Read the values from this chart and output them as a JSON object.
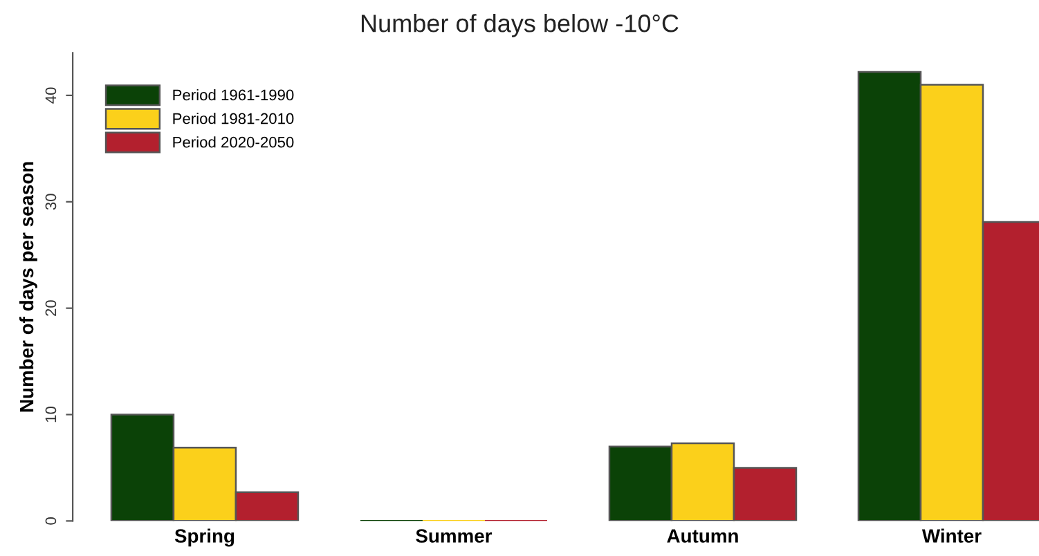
{
  "chart_data": {
    "type": "bar",
    "title": "Number of days below -10°C",
    "ylabel": "Number of days per season",
    "categories": [
      "Spring",
      "Summer",
      "Autumn",
      "Winter"
    ],
    "series": [
      {
        "name": "Period 1961-1990",
        "color": "#0b4207",
        "values": [
          10,
          0,
          7.0,
          42.2
        ]
      },
      {
        "name": "Period 1981-2010",
        "color": "#fbd01b",
        "values": [
          6.9,
          0,
          7.3,
          41.0
        ]
      },
      {
        "name": "Period 2020-2050",
        "color": "#b3202e",
        "values": [
          2.7,
          0,
          5.0,
          28.1
        ]
      }
    ],
    "ylim": [
      0,
      44
    ],
    "yticks": [
      0,
      10,
      20,
      30,
      40
    ],
    "grid": false,
    "legend": "top left"
  }
}
